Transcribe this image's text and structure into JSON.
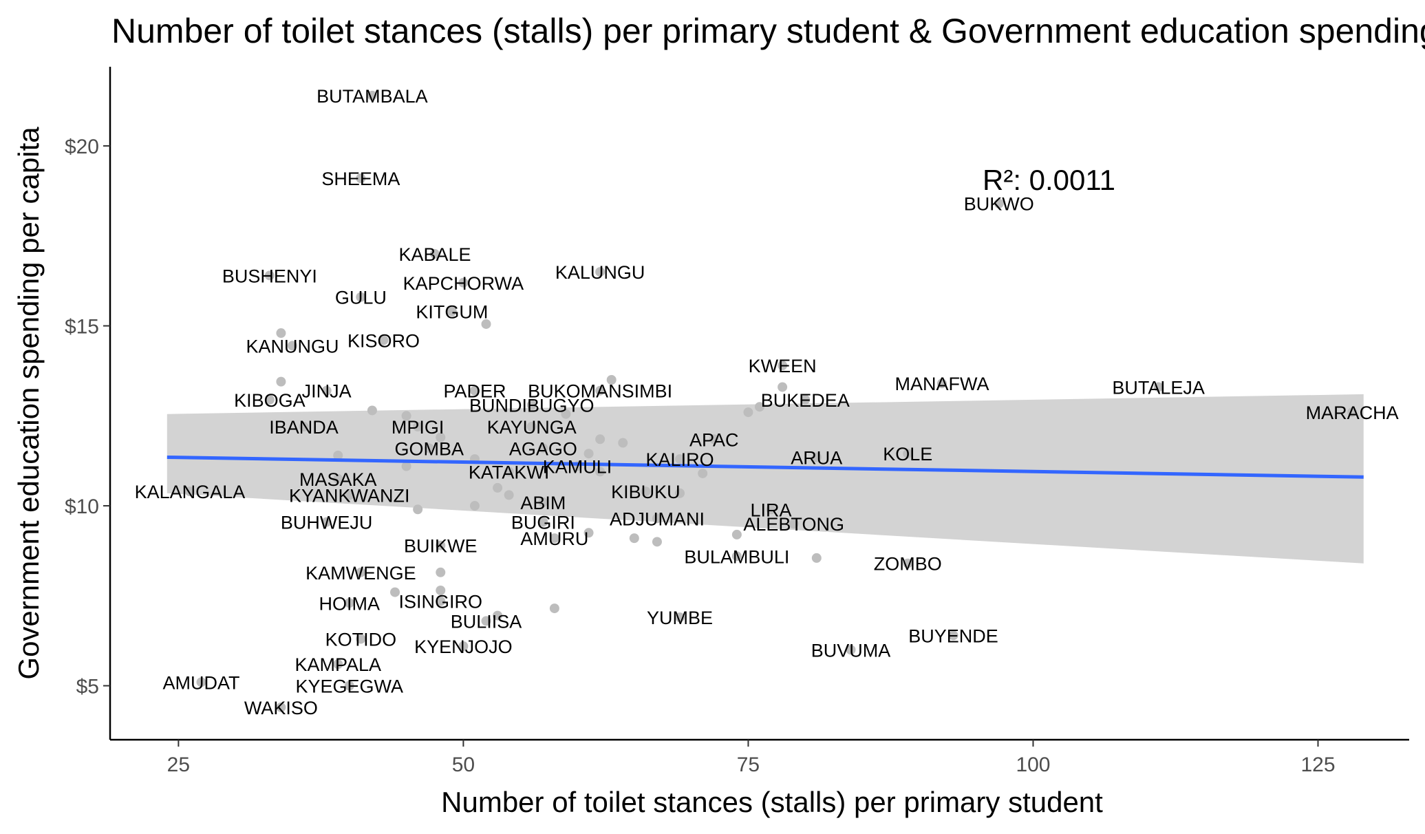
{
  "chart_data": {
    "type": "scatter",
    "title": "Number of toilet stances (stalls) per primary student & Government education spending per capita",
    "xlabel": "Number of toilet stances (stalls) per primary student",
    "ylabel": "Government education spending per capita",
    "xlim": [
      19,
      133
    ],
    "ylim": [
      3.5,
      22.2
    ],
    "x_ticks": [
      25,
      50,
      75,
      100,
      125
    ],
    "x_tick_labels": [
      "25",
      "50",
      "75",
      "100",
      "125"
    ],
    "y_ticks": [
      5,
      10,
      15,
      20
    ],
    "y_tick_labels": [
      "$5",
      "$10",
      "$15",
      "$20"
    ],
    "grid": false,
    "r2_label": "R²: 0.0011",
    "trend_line": {
      "x": [
        24,
        129
      ],
      "y": [
        11.35,
        10.8
      ]
    },
    "confidence_band": {
      "x": [
        24,
        129
      ],
      "upper": [
        12.55,
        13.1
      ],
      "lower": [
        10.35,
        8.4
      ]
    },
    "colors": {
      "points": "#bdbdbd",
      "trend": "#3366ff",
      "band": "#d3d3d3",
      "axis": "#000000",
      "tick_label": "#4d4d4d"
    },
    "points": [
      {
        "label": "BUTAMBALA",
        "x": 42,
        "y": 21.4
      },
      {
        "label": "SHEEMA",
        "x": 41,
        "y": 19.1
      },
      {
        "label": "BUKWO",
        "x": 97,
        "y": 18.4
      },
      {
        "label": "BUSHENYI",
        "x": 33,
        "y": 16.4
      },
      {
        "label": "KABALE",
        "x": 47.5,
        "y": 17.0
      },
      {
        "label": "KAPCHORWA",
        "x": 50,
        "y": 16.2
      },
      {
        "label": "KALUNGU",
        "x": 62,
        "y": 16.5
      },
      {
        "label": "GULU",
        "x": 41,
        "y": 15.8
      },
      {
        "label": "KITGUM",
        "x": 49,
        "y": 15.4
      },
      {
        "label": "",
        "x": 52,
        "y": 15.05
      },
      {
        "label": "",
        "x": 34,
        "y": 14.8
      },
      {
        "label": "KANUNGU",
        "x": 35,
        "y": 14.45
      },
      {
        "label": "KISORO",
        "x": 43,
        "y": 14.6
      },
      {
        "label": "KWEEN",
        "x": 78,
        "y": 13.9
      },
      {
        "label": "",
        "x": 34,
        "y": 13.45
      },
      {
        "label": "",
        "x": 63,
        "y": 13.5
      },
      {
        "label": "PADER",
        "x": 51,
        "y": 13.2
      },
      {
        "label": "BUKOMANSIMBI",
        "x": 62,
        "y": 13.2
      },
      {
        "label": "MANAFWA",
        "x": 92,
        "y": 13.4
      },
      {
        "label": "BUTALEJA",
        "x": 111,
        "y": 13.3
      },
      {
        "label": "",
        "x": 78,
        "y": 13.3
      },
      {
        "label": "JINJA",
        "x": 38,
        "y": 13.2
      },
      {
        "label": "KIBOGA",
        "x": 33,
        "y": 12.95
      },
      {
        "label": "BUKEDEA",
        "x": 80,
        "y": 12.95
      },
      {
        "label": "BUNDIBUGYO",
        "x": 56,
        "y": 12.8
      },
      {
        "label": "",
        "x": 76,
        "y": 12.75
      },
      {
        "label": "",
        "x": 75,
        "y": 12.6
      },
      {
        "label": "",
        "x": 42,
        "y": 12.65
      },
      {
        "label": "",
        "x": 59,
        "y": 12.55
      },
      {
        "label": "MARACHA",
        "x": 128,
        "y": 12.6
      },
      {
        "label": "",
        "x": 45,
        "y": 12.5
      },
      {
        "label": "IBANDA",
        "x": 36,
        "y": 12.2
      },
      {
        "label": "MPIGI",
        "x": 46,
        "y": 12.2
      },
      {
        "label": "KAYUNGA",
        "x": 56,
        "y": 12.2
      },
      {
        "label": "",
        "x": 48,
        "y": 11.9
      },
      {
        "label": "APAC",
        "x": 72,
        "y": 11.85
      },
      {
        "label": "",
        "x": 62,
        "y": 11.85
      },
      {
        "label": "",
        "x": 64,
        "y": 11.75
      },
      {
        "label": "AGAGO",
        "x": 57,
        "y": 11.6
      },
      {
        "label": "GOMBA",
        "x": 47,
        "y": 11.6
      },
      {
        "label": "",
        "x": 61,
        "y": 11.45
      },
      {
        "label": "",
        "x": 39,
        "y": 11.4
      },
      {
        "label": "ARUA",
        "x": 81,
        "y": 11.35
      },
      {
        "label": "KOLE",
        "x": 89,
        "y": 11.45
      },
      {
        "label": "",
        "x": 51,
        "y": 11.3
      },
      {
        "label": "KALIRO",
        "x": 69,
        "y": 11.3
      },
      {
        "label": "KAMULI",
        "x": 60,
        "y": 11.1
      },
      {
        "label": "",
        "x": 45,
        "y": 11.1
      },
      {
        "label": "KALANGALA",
        "x": 26,
        "y": 10.4
      },
      {
        "label": "KATAKWI",
        "x": 54,
        "y": 10.95
      },
      {
        "label": "",
        "x": 62,
        "y": 10.95
      },
      {
        "label": "",
        "x": 71,
        "y": 10.9
      },
      {
        "label": "MASAKA",
        "x": 39,
        "y": 10.75
      },
      {
        "label": "KIBUKU",
        "x": 66,
        "y": 10.4
      },
      {
        "label": "",
        "x": 53,
        "y": 10.5
      },
      {
        "label": "",
        "x": 54,
        "y": 10.3
      },
      {
        "label": "",
        "x": 69,
        "y": 10.35
      },
      {
        "label": "KYANKWANZI",
        "x": 40,
        "y": 10.3
      },
      {
        "label": "ABIM",
        "x": 57,
        "y": 10.1
      },
      {
        "label": "",
        "x": 51,
        "y": 10.0
      },
      {
        "label": "",
        "x": 46,
        "y": 9.9
      },
      {
        "label": "LIRA",
        "x": 77,
        "y": 9.9
      },
      {
        "label": "ADJUMANI",
        "x": 67,
        "y": 9.65
      },
      {
        "label": "BUGIRI",
        "x": 57,
        "y": 9.55
      },
      {
        "label": "BUHWEJU",
        "x": 38,
        "y": 9.55
      },
      {
        "label": "ALEBTONG",
        "x": 79,
        "y": 9.5
      },
      {
        "label": "",
        "x": 61,
        "y": 9.25
      },
      {
        "label": "",
        "x": 74,
        "y": 9.2
      },
      {
        "label": "AMURU",
        "x": 58,
        "y": 9.1
      },
      {
        "label": "",
        "x": 65,
        "y": 9.1
      },
      {
        "label": "",
        "x": 67,
        "y": 9.0
      },
      {
        "label": "BUIKWE",
        "x": 48,
        "y": 8.9
      },
      {
        "label": "BULAMBULI",
        "x": 74,
        "y": 8.6
      },
      {
        "label": "",
        "x": 81,
        "y": 8.55
      },
      {
        "label": "ZOMBO",
        "x": 89,
        "y": 8.4
      },
      {
        "label": "KAMWENGE",
        "x": 41,
        "y": 8.15
      },
      {
        "label": "",
        "x": 48,
        "y": 8.15
      },
      {
        "label": "",
        "x": 44,
        "y": 7.6
      },
      {
        "label": "",
        "x": 48,
        "y": 7.65
      },
      {
        "label": "ISINGIRO",
        "x": 48,
        "y": 7.35
      },
      {
        "label": "HOIMA",
        "x": 40,
        "y": 7.3
      },
      {
        "label": "",
        "x": 58,
        "y": 7.15
      },
      {
        "label": "",
        "x": 53,
        "y": 6.95
      },
      {
        "label": "BULIISA",
        "x": 52,
        "y": 6.8
      },
      {
        "label": "YUMBE",
        "x": 69,
        "y": 6.9
      },
      {
        "label": "BUYENDE",
        "x": 93,
        "y": 6.4
      },
      {
        "label": "KOTIDO",
        "x": 41,
        "y": 6.3
      },
      {
        "label": "KYENJOJO",
        "x": 50,
        "y": 6.1
      },
      {
        "label": "BUVUMA",
        "x": 84,
        "y": 6.0
      },
      {
        "label": "KAMPALA",
        "x": 39,
        "y": 5.6
      },
      {
        "label": "AMUDAT",
        "x": 27,
        "y": 5.1
      },
      {
        "label": "KYEGEGWA",
        "x": 40,
        "y": 5.0
      },
      {
        "label": "WAKISO",
        "x": 34,
        "y": 4.4
      }
    ]
  }
}
